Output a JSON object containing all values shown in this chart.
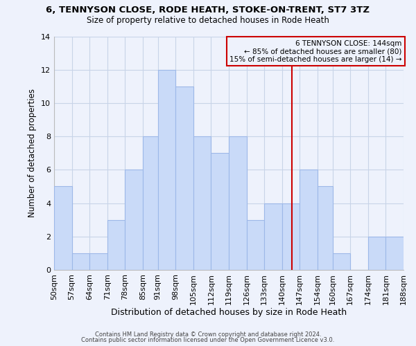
{
  "title": "6, TENNYSON CLOSE, RODE HEATH, STOKE-ON-TRENT, ST7 3TZ",
  "subtitle": "Size of property relative to detached houses in Rode Heath",
  "xlabel": "Distribution of detached houses by size in Rode Heath",
  "ylabel": "Number of detached properties",
  "bin_labels": [
    "50sqm",
    "57sqm",
    "64sqm",
    "71sqm",
    "78sqm",
    "85sqm",
    "91sqm",
    "98sqm",
    "105sqm",
    "112sqm",
    "119sqm",
    "126sqm",
    "133sqm",
    "140sqm",
    "147sqm",
    "154sqm",
    "160sqm",
    "167sqm",
    "174sqm",
    "181sqm",
    "188sqm"
  ],
  "bin_edges": [
    50,
    57,
    64,
    71,
    78,
    85,
    91,
    98,
    105,
    112,
    119,
    126,
    133,
    140,
    147,
    154,
    160,
    167,
    174,
    181,
    188
  ],
  "bar_heights": [
    5,
    1,
    1,
    3,
    6,
    8,
    12,
    11,
    8,
    7,
    8,
    3,
    4,
    4,
    6,
    5,
    1,
    0,
    2,
    2,
    0
  ],
  "bar_color": "#c9daf8",
  "bar_edge_color": "#9db8e8",
  "grid_color": "#c8d4e8",
  "property_line_x": 144,
  "property_line_color": "#cc0000",
  "annotation_title": "6 TENNYSON CLOSE: 144sqm",
  "annotation_line1": "← 85% of detached houses are smaller (80)",
  "annotation_line2": "15% of semi-detached houses are larger (14) →",
  "annotation_box_edge_color": "#cc0000",
  "ylim": [
    0,
    14
  ],
  "yticks": [
    0,
    2,
    4,
    6,
    8,
    10,
    12,
    14
  ],
  "footer1": "Contains HM Land Registry data © Crown copyright and database right 2024.",
  "footer2": "Contains public sector information licensed under the Open Government Licence v3.0.",
  "bg_color": "#eef2fc"
}
